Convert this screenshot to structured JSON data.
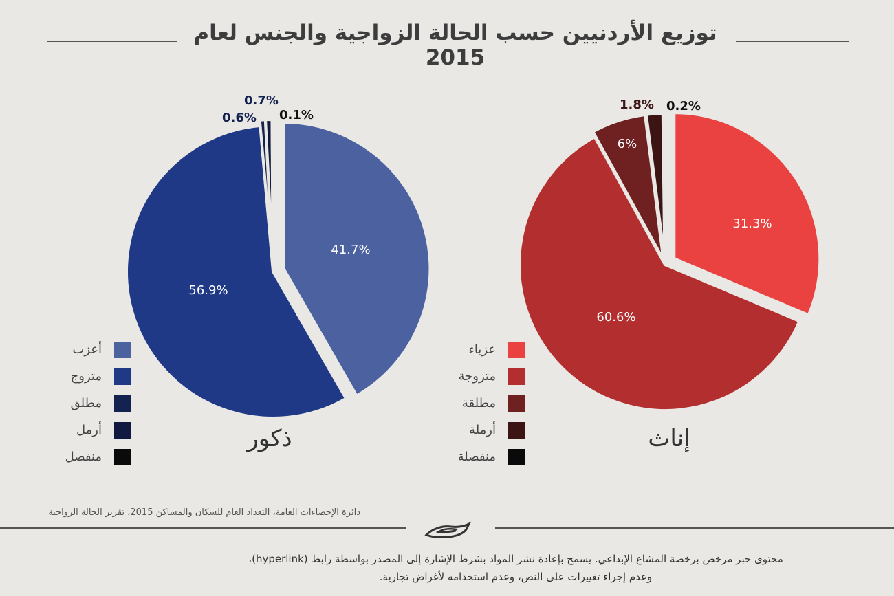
{
  "title": "توزيع الأردنيين حسب الحالة الزواجية والجنس لعام 2015",
  "chart_data": [
    {
      "type": "pie",
      "caption": "ذكور",
      "categories": [
        "أعزب",
        "متزوج",
        "مطلق",
        "أرمل",
        "منفصل"
      ],
      "values": [
        41.7,
        56.9,
        0.6,
        0.7,
        0.1
      ],
      "labels": [
        "41.7%",
        "56.9%",
        "0.6%",
        "0.7%",
        "0.1%"
      ],
      "colors": [
        "#4c61a0",
        "#1f3986",
        "#14224f",
        "#101a40",
        "#0a0a0a"
      ],
      "exploded_index": 0,
      "start_angle_deg": 0,
      "direction": "clockwise",
      "legend": "left"
    },
    {
      "type": "pie",
      "caption": "إناث",
      "categories": [
        "عزباء",
        "متزوجة",
        "مطلقة",
        "أرملة",
        "منفصلة"
      ],
      "values": [
        31.3,
        60.6,
        6,
        1.8,
        0.2
      ],
      "labels": [
        "31.3%",
        "60.6%",
        "6%",
        "1.8%",
        "0.2%"
      ],
      "colors": [
        "#e94240",
        "#b32f2f",
        "#6f2020",
        "#3b1414",
        "#0a0a0a"
      ],
      "exploded_index": 0,
      "start_angle_deg": 0,
      "direction": "clockwise",
      "legend": "left"
    }
  ],
  "source": "دائرة الإحصاءات العامة، التعداد العام للسكان والمساكن 2015، تقرير الحالة الزواجية",
  "license": {
    "line1": "محتوى حبر مرخص برخصة المشاع الإبداعي. يسمح بإعادة نشر المواد بشرط الإشارة إلى المصدر بواسطة رابط (hyperlink)،",
    "line2": "وعدم إجراء تغييرات على النص، وعدم استخدامه لأغراض تجارية."
  },
  "logo": "hiber-logo"
}
